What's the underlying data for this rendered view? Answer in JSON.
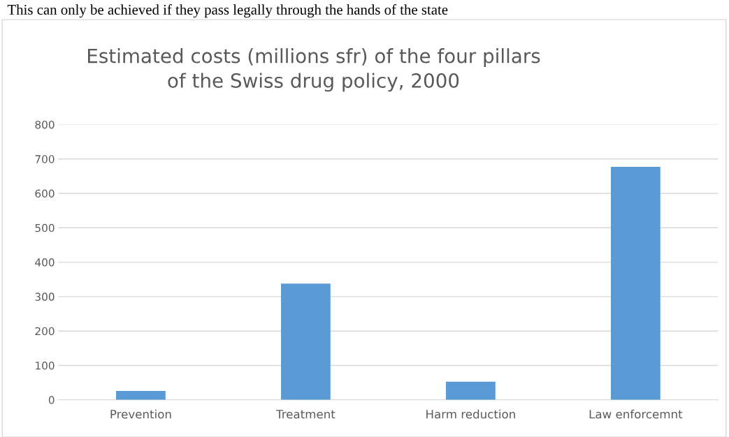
{
  "chart_data": {
    "type": "bar",
    "title": "Estimated costs (millions sfr) of the four pillars\nof the Swiss drug policy, 2000",
    "categories": [
      "Prevention",
      "Treatment",
      "Harm reduction",
      "Law enforcemnt"
    ],
    "values": [
      26,
      338,
      53,
      677
    ],
    "color": "#5b9bd5",
    "ylim": [
      0,
      800
    ],
    "yticks": [
      0,
      100,
      200,
      300,
      400,
      500,
      600,
      700,
      800
    ],
    "grid": "y",
    "annotations": [
      "This can only be achieved if they pass legally through the hands of the state"
    ]
  }
}
